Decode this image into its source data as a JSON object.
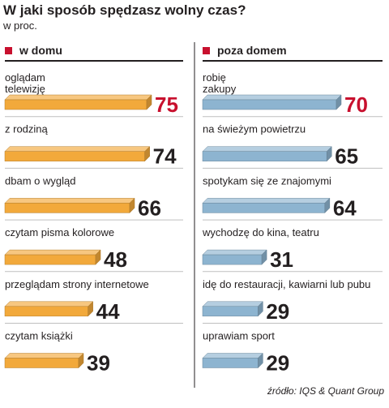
{
  "title": "W jaki sposób spędzasz wolny czas?",
  "subtitle": "w proc.",
  "source": "źródło: IQS & Quant Group",
  "colors": {
    "accent": "#c8102e",
    "home_bar": "#f2a93b",
    "away_bar": "#8db4d0",
    "divider": "#231f20",
    "row_line": "#bfbfbf"
  },
  "chart_data": [
    {
      "type": "bar",
      "name": "w domu",
      "categories": [
        "oglądam telewizję",
        "z rodziną",
        "dbam o wygląd",
        "czytam pisma kolorowe",
        "przeglądam strony internetowe",
        "czytam książki"
      ],
      "values": [
        75,
        74,
        66,
        48,
        44,
        39
      ],
      "highlight_index": 0
    },
    {
      "type": "bar",
      "name": "poza domem",
      "categories": [
        "robię zakupy",
        "na świeżym powietrzu",
        "spotykam się ze znajomymi",
        "wychodzę do kina, teatru",
        "idę do restauracji, kawiarni lub pubu",
        "uprawiam sport"
      ],
      "values": [
        70,
        65,
        64,
        31,
        29,
        29
      ],
      "highlight_index": 0
    }
  ]
}
